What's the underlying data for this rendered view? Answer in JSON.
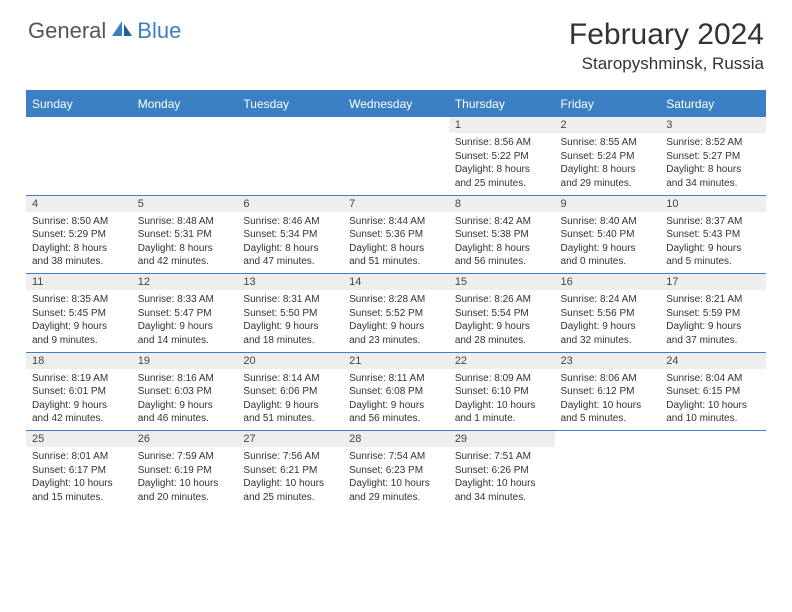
{
  "logo": {
    "general": "General",
    "blue": "Blue"
  },
  "title": "February 2024",
  "location": "Staropyshminsk, Russia",
  "colors": {
    "header_bg": "#3b7fc4",
    "header_text": "#ffffff",
    "daynum_bg": "#eeeeee",
    "rule": "#3b7fc4",
    "body_text": "#333333",
    "page_bg": "#ffffff"
  },
  "day_headers": [
    "Sunday",
    "Monday",
    "Tuesday",
    "Wednesday",
    "Thursday",
    "Friday",
    "Saturday"
  ],
  "weeks": [
    [
      null,
      null,
      null,
      null,
      {
        "n": "1",
        "sr": "Sunrise: 8:56 AM",
        "ss": "Sunset: 5:22 PM",
        "d1": "Daylight: 8 hours",
        "d2": "and 25 minutes."
      },
      {
        "n": "2",
        "sr": "Sunrise: 8:55 AM",
        "ss": "Sunset: 5:24 PM",
        "d1": "Daylight: 8 hours",
        "d2": "and 29 minutes."
      },
      {
        "n": "3",
        "sr": "Sunrise: 8:52 AM",
        "ss": "Sunset: 5:27 PM",
        "d1": "Daylight: 8 hours",
        "d2": "and 34 minutes."
      }
    ],
    [
      {
        "n": "4",
        "sr": "Sunrise: 8:50 AM",
        "ss": "Sunset: 5:29 PM",
        "d1": "Daylight: 8 hours",
        "d2": "and 38 minutes."
      },
      {
        "n": "5",
        "sr": "Sunrise: 8:48 AM",
        "ss": "Sunset: 5:31 PM",
        "d1": "Daylight: 8 hours",
        "d2": "and 42 minutes."
      },
      {
        "n": "6",
        "sr": "Sunrise: 8:46 AM",
        "ss": "Sunset: 5:34 PM",
        "d1": "Daylight: 8 hours",
        "d2": "and 47 minutes."
      },
      {
        "n": "7",
        "sr": "Sunrise: 8:44 AM",
        "ss": "Sunset: 5:36 PM",
        "d1": "Daylight: 8 hours",
        "d2": "and 51 minutes."
      },
      {
        "n": "8",
        "sr": "Sunrise: 8:42 AM",
        "ss": "Sunset: 5:38 PM",
        "d1": "Daylight: 8 hours",
        "d2": "and 56 minutes."
      },
      {
        "n": "9",
        "sr": "Sunrise: 8:40 AM",
        "ss": "Sunset: 5:40 PM",
        "d1": "Daylight: 9 hours",
        "d2": "and 0 minutes."
      },
      {
        "n": "10",
        "sr": "Sunrise: 8:37 AM",
        "ss": "Sunset: 5:43 PM",
        "d1": "Daylight: 9 hours",
        "d2": "and 5 minutes."
      }
    ],
    [
      {
        "n": "11",
        "sr": "Sunrise: 8:35 AM",
        "ss": "Sunset: 5:45 PM",
        "d1": "Daylight: 9 hours",
        "d2": "and 9 minutes."
      },
      {
        "n": "12",
        "sr": "Sunrise: 8:33 AM",
        "ss": "Sunset: 5:47 PM",
        "d1": "Daylight: 9 hours",
        "d2": "and 14 minutes."
      },
      {
        "n": "13",
        "sr": "Sunrise: 8:31 AM",
        "ss": "Sunset: 5:50 PM",
        "d1": "Daylight: 9 hours",
        "d2": "and 18 minutes."
      },
      {
        "n": "14",
        "sr": "Sunrise: 8:28 AM",
        "ss": "Sunset: 5:52 PM",
        "d1": "Daylight: 9 hours",
        "d2": "and 23 minutes."
      },
      {
        "n": "15",
        "sr": "Sunrise: 8:26 AM",
        "ss": "Sunset: 5:54 PM",
        "d1": "Daylight: 9 hours",
        "d2": "and 28 minutes."
      },
      {
        "n": "16",
        "sr": "Sunrise: 8:24 AM",
        "ss": "Sunset: 5:56 PM",
        "d1": "Daylight: 9 hours",
        "d2": "and 32 minutes."
      },
      {
        "n": "17",
        "sr": "Sunrise: 8:21 AM",
        "ss": "Sunset: 5:59 PM",
        "d1": "Daylight: 9 hours",
        "d2": "and 37 minutes."
      }
    ],
    [
      {
        "n": "18",
        "sr": "Sunrise: 8:19 AM",
        "ss": "Sunset: 6:01 PM",
        "d1": "Daylight: 9 hours",
        "d2": "and 42 minutes."
      },
      {
        "n": "19",
        "sr": "Sunrise: 8:16 AM",
        "ss": "Sunset: 6:03 PM",
        "d1": "Daylight: 9 hours",
        "d2": "and 46 minutes."
      },
      {
        "n": "20",
        "sr": "Sunrise: 8:14 AM",
        "ss": "Sunset: 6:06 PM",
        "d1": "Daylight: 9 hours",
        "d2": "and 51 minutes."
      },
      {
        "n": "21",
        "sr": "Sunrise: 8:11 AM",
        "ss": "Sunset: 6:08 PM",
        "d1": "Daylight: 9 hours",
        "d2": "and 56 minutes."
      },
      {
        "n": "22",
        "sr": "Sunrise: 8:09 AM",
        "ss": "Sunset: 6:10 PM",
        "d1": "Daylight: 10 hours",
        "d2": "and 1 minute."
      },
      {
        "n": "23",
        "sr": "Sunrise: 8:06 AM",
        "ss": "Sunset: 6:12 PM",
        "d1": "Daylight: 10 hours",
        "d2": "and 5 minutes."
      },
      {
        "n": "24",
        "sr": "Sunrise: 8:04 AM",
        "ss": "Sunset: 6:15 PM",
        "d1": "Daylight: 10 hours",
        "d2": "and 10 minutes."
      }
    ],
    [
      {
        "n": "25",
        "sr": "Sunrise: 8:01 AM",
        "ss": "Sunset: 6:17 PM",
        "d1": "Daylight: 10 hours",
        "d2": "and 15 minutes."
      },
      {
        "n": "26",
        "sr": "Sunrise: 7:59 AM",
        "ss": "Sunset: 6:19 PM",
        "d1": "Daylight: 10 hours",
        "d2": "and 20 minutes."
      },
      {
        "n": "27",
        "sr": "Sunrise: 7:56 AM",
        "ss": "Sunset: 6:21 PM",
        "d1": "Daylight: 10 hours",
        "d2": "and 25 minutes."
      },
      {
        "n": "28",
        "sr": "Sunrise: 7:54 AM",
        "ss": "Sunset: 6:23 PM",
        "d1": "Daylight: 10 hours",
        "d2": "and 29 minutes."
      },
      {
        "n": "29",
        "sr": "Sunrise: 7:51 AM",
        "ss": "Sunset: 6:26 PM",
        "d1": "Daylight: 10 hours",
        "d2": "and 34 minutes."
      },
      null,
      null
    ]
  ]
}
